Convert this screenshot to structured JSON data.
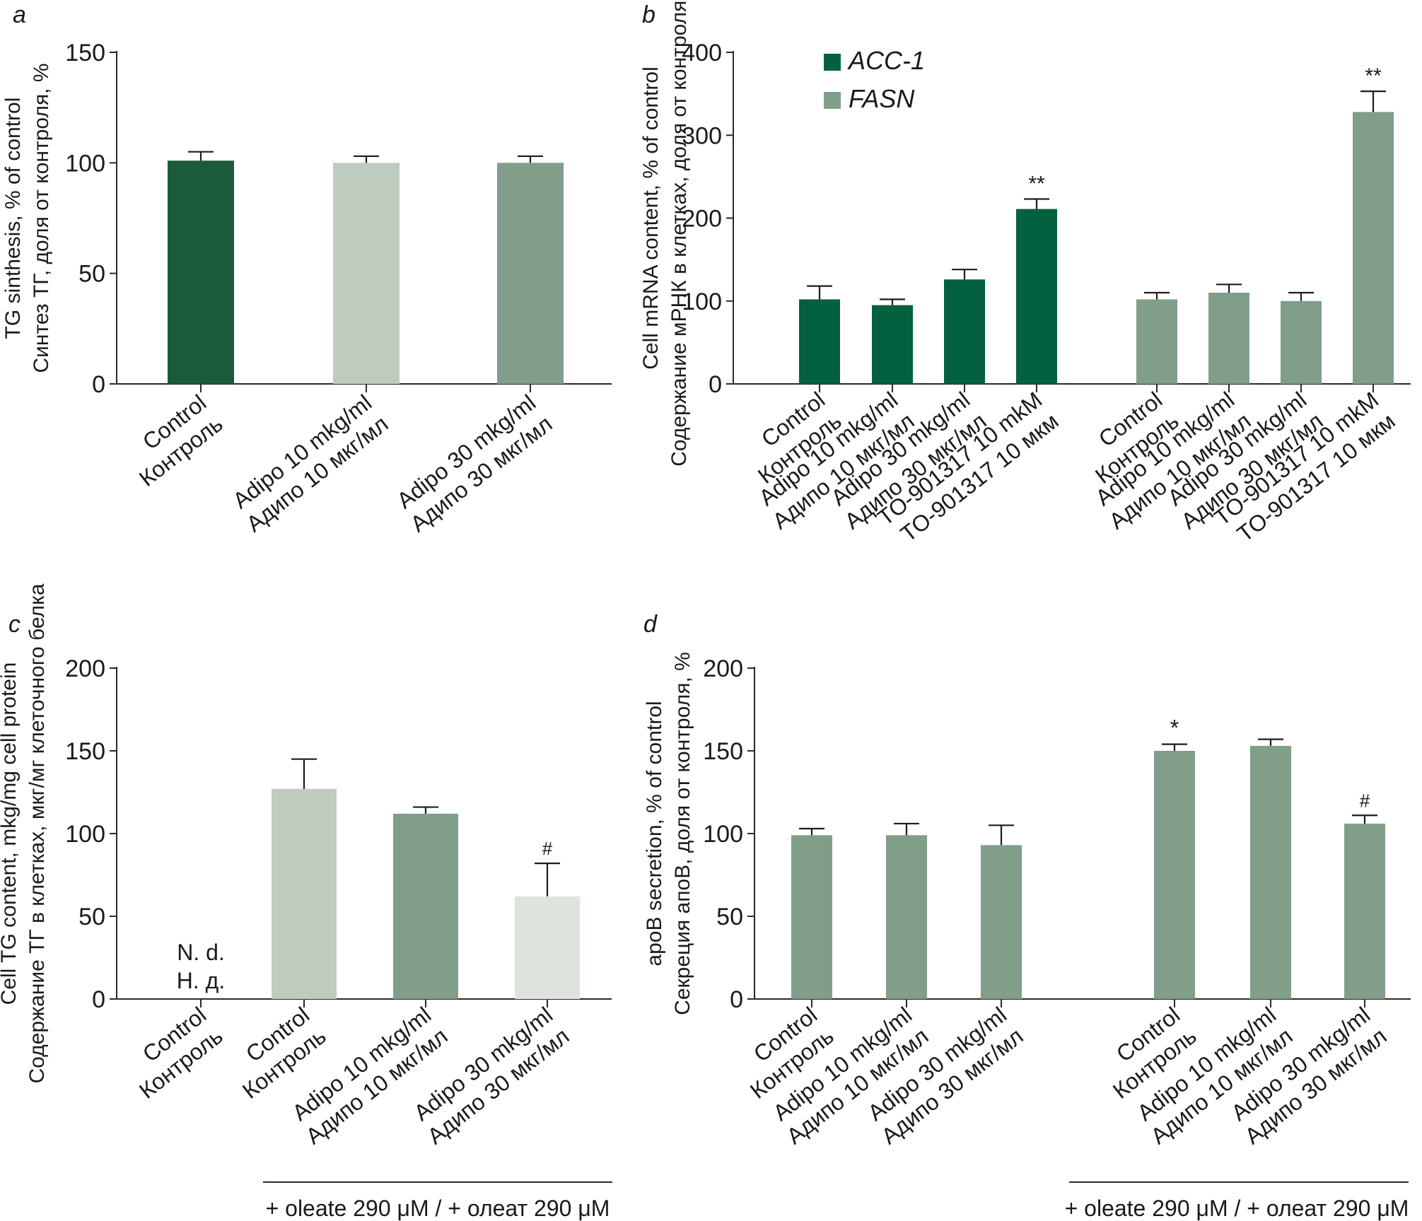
{
  "colors": {
    "dark_green": "#1c5a3c",
    "acc1_green": "#04613f",
    "light_green": "#bfcbbe",
    "mid_green": "#809e8a",
    "pale_green": "#dfe3dd",
    "axis": "#2a2a2a",
    "text": "#1a1a1a"
  },
  "chart_data": [
    {
      "panel": "a",
      "type": "bar",
      "ylabel": [
        "TG sinthesis, % of control",
        "Синтез ТГ, доля от контроля, %"
      ],
      "ylim": [
        0,
        150
      ],
      "yticks": [
        0,
        50,
        100,
        150
      ],
      "categories": [
        [
          "Control",
          "Контроль"
        ],
        [
          "Adipo 10 mkg/ml",
          "Адипо 10 мкг/мл"
        ],
        [
          "Adipo 30 mkg/ml",
          "Адипо 30 мкг/мл"
        ]
      ],
      "values": [
        101,
        100,
        100
      ],
      "errors": [
        4,
        3,
        3
      ],
      "bar_colors": [
        "#1c5a3c",
        "#bfcbbe",
        "#809e8a"
      ],
      "annotations": [
        "",
        "",
        ""
      ]
    },
    {
      "panel": "b",
      "type": "bar",
      "ylabel": [
        "Cell mRNA content, % of control",
        "Содержание мРНК в клетках, доля от контроля, %"
      ],
      "ylim": [
        0,
        400
      ],
      "yticks": [
        0,
        100,
        200,
        300,
        400
      ],
      "legend": {
        "placement": "top-left",
        "entries": [
          {
            "name": "ACC-1",
            "color": "#04613f"
          },
          {
            "name": "FASN",
            "color": "#809e8a"
          }
        ]
      },
      "groups": [
        {
          "name": "ACC-1",
          "categories": [
            [
              "Control",
              "Контроль"
            ],
            [
              "Adipo 10 mkg/ml",
              "Адипо 10 мкг/мл"
            ],
            [
              "Adipo 30 mkg/ml",
              "Адипо 30 мкг/мл"
            ],
            [
              "TO-901317 10 mkM",
              "TO-901317 10 мкм"
            ]
          ],
          "values": [
            102,
            95,
            126,
            211
          ],
          "errors": [
            16,
            7,
            12,
            12
          ],
          "annotations": [
            "",
            "",
            "",
            "**"
          ],
          "color": "#04613f"
        },
        {
          "name": "FASN",
          "categories": [
            [
              "Control",
              "Контроль"
            ],
            [
              "Adipo 10 mkg/ml",
              "Адипо 10 мкг/мл"
            ],
            [
              "Adipo 30 mkg/ml",
              "Адипо 30 мкг/мл"
            ],
            [
              "TO-901317 10 mkM",
              "TO-901317 10 мкм"
            ]
          ],
          "values": [
            102,
            110,
            100,
            328
          ],
          "errors": [
            8,
            10,
            10,
            25
          ],
          "annotations": [
            "",
            "",
            "",
            "**"
          ],
          "color": "#809e8a"
        }
      ]
    },
    {
      "panel": "c",
      "type": "bar",
      "ylabel": [
        "Cell TG content, mkg/mg cell protein",
        "Содержание ТГ в клетках, мкг/мг клеточного белка"
      ],
      "ylim": [
        0,
        200
      ],
      "yticks": [
        0,
        50,
        100,
        150,
        200
      ],
      "categories": [
        [
          "Control",
          "Контроль"
        ],
        [
          "Control",
          "Контроль"
        ],
        [
          "Adipo 10 mkg/ml",
          "Адипо 10 мкг/мл"
        ],
        [
          "Adipo 30 mkg/ml",
          "Адипо 30 мкг/мл"
        ]
      ],
      "values": [
        null,
        127,
        112,
        62
      ],
      "errors": [
        0,
        18,
        4,
        20
      ],
      "bar_colors": [
        "#ffffff",
        "#bfcbbe",
        "#809e8a",
        "#dfe3dd"
      ],
      "annotations": [
        "",
        "",
        "",
        "#"
      ],
      "nd_label": [
        "N. d.",
        "Н. д."
      ],
      "bracket": {
        "label": "+ oleate 290 μM / + олеат 290 μM",
        "from": 1,
        "to": 3
      }
    },
    {
      "panel": "d",
      "type": "bar",
      "ylabel": [
        "apoB secretion, % of control",
        "Секреция апоВ, доля от контроля, %"
      ],
      "ylim": [
        0,
        200
      ],
      "yticks": [
        0,
        50,
        100,
        150,
        200
      ],
      "categories": [
        [
          "Control",
          "Контроль"
        ],
        [
          "Adipo 10 mkg/ml",
          "Адипо 10 мкг/мл"
        ],
        [
          "Adipo 30 mkg/ml",
          "Адипо 30 мкг/мл"
        ],
        [
          "Control",
          "Контроль"
        ],
        [
          "Adipo 10 mkg/ml",
          "Адипо 10 мкг/мл"
        ],
        [
          "Adipo 30 mkg/ml",
          "Адипо 30 мкг/мл"
        ]
      ],
      "values": [
        99,
        99,
        93,
        150,
        153,
        106
      ],
      "errors": [
        4,
        7,
        12,
        4,
        4,
        5
      ],
      "bar_colors": [
        "#809e8a",
        "#809e8a",
        "#809e8a",
        "#809e8a",
        "#809e8a",
        "#809e8a"
      ],
      "annotations": [
        "",
        "",
        "",
        "*",
        "",
        "#"
      ],
      "bracket": {
        "label": "+ oleate 290 μM / + олеат 290 μM",
        "from": 3,
        "to": 5
      }
    }
  ]
}
